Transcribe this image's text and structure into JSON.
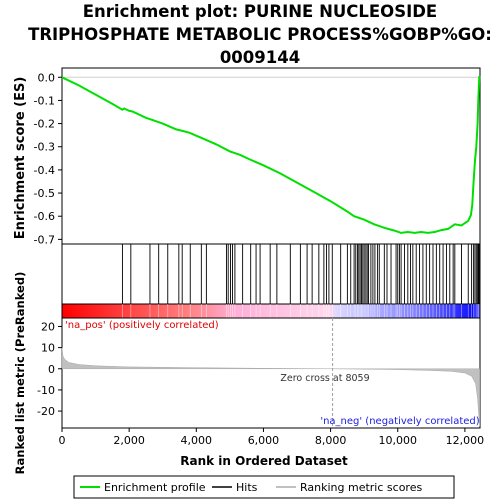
{
  "chart_data": {
    "type": "line",
    "title_lines": [
      "Enrichment plot: PURINE NUCLEOSIDE",
      "TRIPHOSPHATE METABOLIC PROCESS%GOBP%GO:",
      "0009144"
    ],
    "top_panel": {
      "ylabel": "Enrichment score (ES)",
      "ylim": [
        -0.72,
        0.04
      ],
      "yticks": [
        0.0,
        -0.1,
        -0.2,
        -0.3,
        -0.4,
        -0.5,
        -0.6,
        -0.7
      ],
      "ytick_labels": [
        "0.0",
        "-0.1",
        "-0.2",
        "-0.3",
        "-0.4",
        "-0.5",
        "-0.6",
        "-0.7"
      ],
      "series": [
        {
          "name": "Enrichment profile",
          "color": "#00e000",
          "x": [
            0,
            500,
            1000,
            1500,
            1800,
            1850,
            2000,
            2100,
            2500,
            2700,
            3000,
            3400,
            3600,
            3800,
            4200,
            4600,
            5000,
            5300,
            5600,
            6000,
            6500,
            7000,
            7500,
            8000,
            8500,
            8700,
            9000,
            9300,
            9600,
            9900,
            10100,
            10300,
            10500,
            10700,
            10900,
            11100,
            11300,
            11500,
            11700,
            11900,
            12100,
            12180,
            12220,
            12260,
            12300,
            12340,
            12380,
            12400,
            12430
          ],
          "y": [
            0.0,
            -0.035,
            -0.075,
            -0.115,
            -0.14,
            -0.135,
            -0.145,
            -0.148,
            -0.175,
            -0.185,
            -0.2,
            -0.225,
            -0.232,
            -0.24,
            -0.265,
            -0.29,
            -0.32,
            -0.335,
            -0.355,
            -0.38,
            -0.415,
            -0.455,
            -0.495,
            -0.535,
            -0.58,
            -0.6,
            -0.615,
            -0.635,
            -0.65,
            -0.662,
            -0.672,
            -0.668,
            -0.672,
            -0.668,
            -0.672,
            -0.668,
            -0.66,
            -0.655,
            -0.635,
            -0.64,
            -0.62,
            -0.595,
            -0.55,
            -0.45,
            -0.36,
            -0.3,
            -0.2,
            -0.1,
            0.005
          ]
        }
      ]
    },
    "hits_x": [
      1800,
      2050,
      2620,
      2880,
      3150,
      3480,
      3580,
      3820,
      4150,
      4300,
      4900,
      4950,
      5020,
      5080,
      5150,
      5380,
      5620,
      5780,
      5900,
      6200,
      6400,
      6800,
      7100,
      7300,
      7450,
      7650,
      7800,
      7880,
      7950,
      8050,
      8300,
      8500,
      8600,
      8700,
      8750,
      8800,
      8840,
      8880,
      8920,
      8960,
      9000,
      9050,
      9090,
      9130,
      9200,
      9260,
      9320,
      9400,
      9450,
      9600,
      9680,
      9800,
      9950,
      10000,
      10050,
      10100,
      10200,
      10300,
      10380,
      10450,
      10550,
      10650,
      10750,
      10850,
      10950,
      11050,
      11150,
      11250,
      11350,
      11450,
      11550,
      11650,
      11700,
      11900,
      12100,
      12200,
      12260,
      12300,
      12340,
      12380,
      12400,
      12420
    ],
    "bottom_panel": {
      "ylabel": "Ranked list metric (PreRanked)",
      "xlabel": "Rank in Ordered Dataset",
      "ylim": [
        -28,
        24
      ],
      "yticks": [
        20,
        10,
        0,
        -10,
        -20
      ],
      "ytick_labels": [
        "20",
        "10",
        "0",
        "-10",
        "-20"
      ],
      "metric_x": [
        0,
        30,
        80,
        200,
        500,
        1000,
        2000,
        4000,
        6000,
        8059,
        10000,
        11000,
        11600,
        12000,
        12200,
        12320,
        12380,
        12420,
        12440
      ],
      "metric_y": [
        10,
        6,
        4.5,
        3,
        2,
        1.4,
        0.9,
        0.5,
        0.2,
        0.0,
        -0.4,
        -0.8,
        -1.2,
        -2.0,
        -3.5,
        -7,
        -14,
        -24,
        -27
      ],
      "zero_cross_label": "Zero cross at 8059",
      "zero_cross_x": 8059,
      "pos_label": "'na_pos' (positively correlated)",
      "neg_label": "'na_neg' (negatively correlated)"
    },
    "xlim": [
      0,
      12450
    ],
    "xticks": [
      0,
      2000,
      4000,
      6000,
      8000,
      10000,
      12000
    ],
    "xtick_labels": [
      "0",
      "2,000",
      "4,000",
      "6,000",
      "8,000",
      "10,000",
      "12,000"
    ],
    "legend": {
      "placement": "bottom",
      "entries": [
        {
          "label": "Enrichment profile",
          "color": "#00e000"
        },
        {
          "label": "Hits",
          "color": "#000000"
        },
        {
          "label": "Ranking metric scores",
          "color": "#c0c0c0"
        }
      ]
    }
  }
}
